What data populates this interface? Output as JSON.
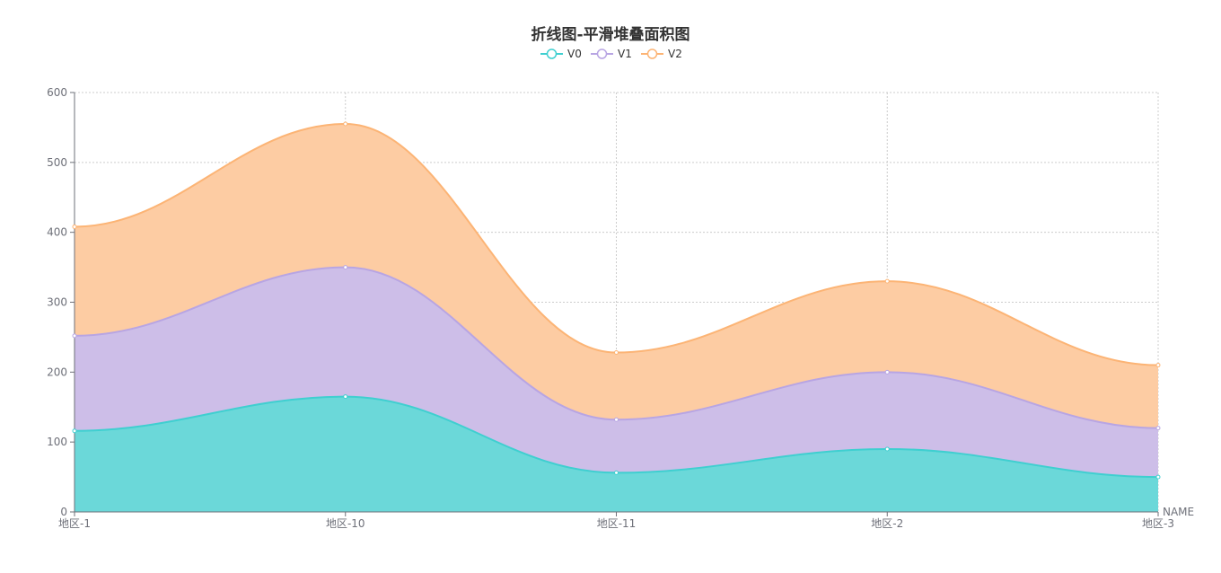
{
  "chart_data": {
    "type": "area",
    "stacked": true,
    "smooth": true,
    "title": "折线图-平滑堆叠面积图",
    "categories": [
      "地区-1",
      "地区-10",
      "地区-11",
      "地区-2",
      "地区-3"
    ],
    "xname": "NAME",
    "ylim": [
      0,
      600
    ],
    "yticks": [
      "0",
      "100",
      "200",
      "300",
      "400",
      "500",
      "600"
    ],
    "grid": true,
    "legend_position": "top-center",
    "series": [
      {
        "name": "V0",
        "values": [
          116,
          165,
          56,
          90,
          50
        ],
        "color": "#3fcfd0",
        "fill": "#6bd8d9"
      },
      {
        "name": "V1",
        "values": [
          136,
          185,
          76,
          110,
          70
        ],
        "color": "#b8a5e3",
        "fill": "#cdbee8"
      },
      {
        "name": "V2",
        "values": [
          156,
          205,
          96,
          130,
          90
        ],
        "color": "#fcb475",
        "fill": "#fdcca3"
      }
    ]
  }
}
